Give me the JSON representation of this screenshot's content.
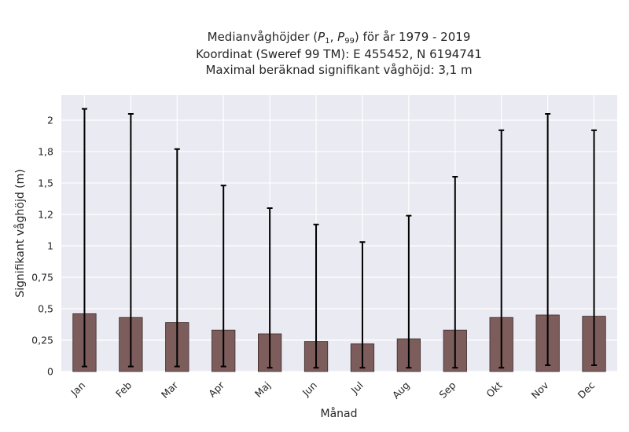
{
  "chart_data": {
    "type": "bar",
    "title_lines": [
      "Medianvåghöjder (P1, P99) för år 1979 - 2019",
      "Koordinat (Sweref 99 TM): E 455452, N 6194741",
      "Maximal beräknad signifikant våghöjd: 3,1 m"
    ],
    "xlabel": "Månad",
    "ylabel": "Signifikant våghöjd (m)",
    "categories": [
      "Jan",
      "Feb",
      "Mar",
      "Apr",
      "Maj",
      "Jun",
      "Jul",
      "Aug",
      "Sep",
      "Okt",
      "Nov",
      "Dec"
    ],
    "values": [
      0.46,
      0.43,
      0.39,
      0.33,
      0.3,
      0.24,
      0.22,
      0.26,
      0.33,
      0.43,
      0.45,
      0.44
    ],
    "error_low": [
      0.04,
      0.04,
      0.04,
      0.04,
      0.03,
      0.03,
      0.03,
      0.03,
      0.03,
      0.03,
      0.05,
      0.05
    ],
    "error_high": [
      2.09,
      2.05,
      1.77,
      1.48,
      1.3,
      1.17,
      1.03,
      1.24,
      1.55,
      1.92,
      2.05,
      1.92
    ],
    "yticks": [
      {
        "value": 0,
        "label": "0"
      },
      {
        "value": 0.25,
        "label": "0,25"
      },
      {
        "value": 0.5,
        "label": "0,5"
      },
      {
        "value": 0.75,
        "label": "0,75"
      },
      {
        "value": 1,
        "label": "1"
      },
      {
        "value": 1.25,
        "label": "1,2"
      },
      {
        "value": 1.5,
        "label": "1,5"
      },
      {
        "value": 1.75,
        "label": "1,8"
      },
      {
        "value": 2,
        "label": "2"
      }
    ],
    "ylim": [
      0,
      2.2
    ],
    "grid": true,
    "colors": {
      "bar": "#7d5c5c",
      "bar_edge": "#3a2a2a",
      "error": "#000000",
      "plot_bg": "#eaeaf2",
      "grid": "#ffffff"
    }
  }
}
